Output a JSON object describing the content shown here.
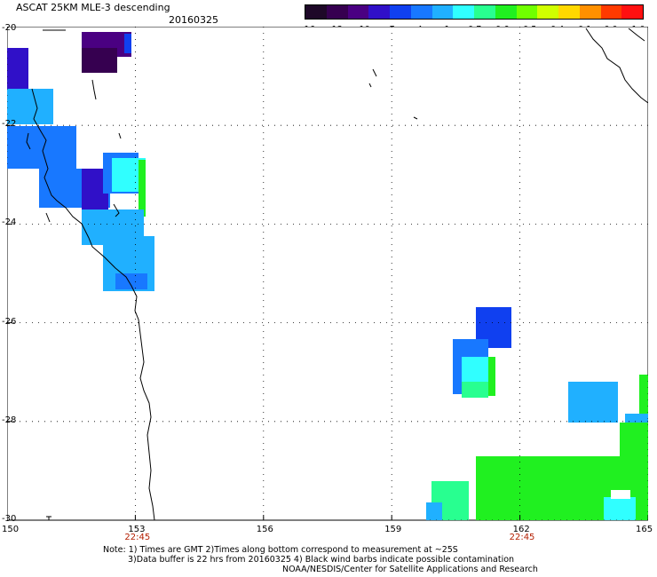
{
  "title": "ASCAT 25KM MLE-3 descending",
  "date": "20160325",
  "colorbar": {
    "labels": [
      "-16",
      "-13",
      "-10",
      "-7",
      "-4",
      "-1",
      "-0.7",
      "-0.6",
      "-0.5",
      "-0.4",
      "-0.1",
      "0.0",
      "1.0"
    ],
    "colors": [
      "#1e0828",
      "#360050",
      "#4a0082",
      "#3010c8",
      "#1040f0",
      "#1878ff",
      "#20b0ff",
      "#30ffff",
      "#28ff90",
      "#20f020",
      "#70ff00",
      "#d0ff00",
      "#ffd800",
      "#ff9000",
      "#ff3a00",
      "#ff1010"
    ]
  },
  "map": {
    "lon_range": [
      150,
      165
    ],
    "lat_range": [
      -20,
      -30
    ],
    "lon_ticks": [
      "150",
      "153",
      "156",
      "159",
      "162",
      "165"
    ],
    "lat_ticks": [
      "-20",
      "-22",
      "-24",
      "-26",
      "-28",
      "-30"
    ],
    "pass_times": [
      {
        "lon": 153,
        "label": "22:45"
      },
      {
        "lon": 162,
        "label": "22:45"
      }
    ]
  },
  "notes": {
    "line1": "Note: 1) Times are GMT 2)Times along bottom correspond to measurement at ~25S",
    "line2": "3)Data buffer is 22 hrs from 20160325 4) Black wind barbs indicate possible contamination",
    "line3": "NOAA/NESDIS/Center for Satellite Applications and Research"
  }
}
